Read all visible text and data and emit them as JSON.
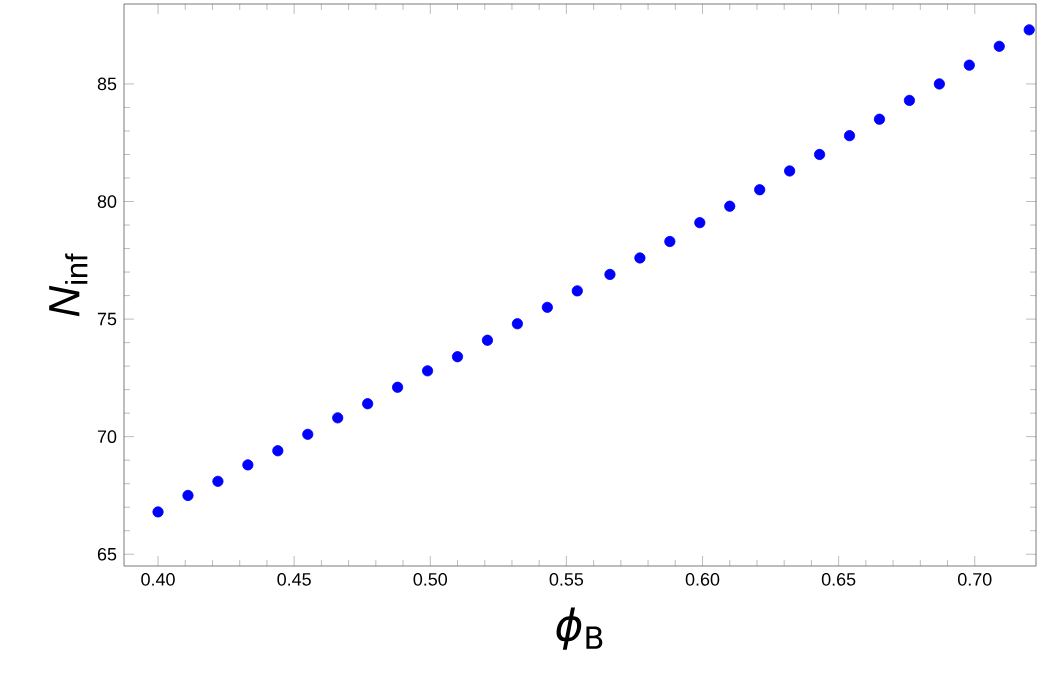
{
  "chart_data": {
    "type": "scatter",
    "xlabel": "*ϕ*$_{B}$",
    "ylabel": "*N*$_{inf}$",
    "x": [
      0.4,
      0.411,
      0.422,
      0.433,
      0.444,
      0.455,
      0.466,
      0.477,
      0.488,
      0.499,
      0.51,
      0.521,
      0.532,
      0.543,
      0.554,
      0.566,
      0.577,
      0.588,
      0.599,
      0.61,
      0.621,
      0.632,
      0.643,
      0.654,
      0.665,
      0.676,
      0.687,
      0.698,
      0.709,
      0.72
    ],
    "series": [
      {
        "color": "#0000ff",
        "values": [
          66.8,
          67.5,
          68.1,
          68.8,
          69.4,
          70.1,
          70.8,
          71.4,
          72.1,
          72.8,
          73.4,
          74.1,
          74.8,
          75.5,
          76.2,
          76.9,
          77.6,
          78.3,
          79.1,
          79.8,
          80.5,
          81.3,
          82.0,
          82.8,
          83.5,
          84.3,
          85.0,
          85.8,
          86.6,
          87.3
        ]
      }
    ],
    "xlim": [
      0.3875,
      0.7225
    ],
    "ylim": [
      64.5,
      88.4
    ],
    "xticks": [
      {
        "value": 0.4,
        "label": "0.40"
      },
      {
        "value": 0.45,
        "label": "0.45"
      },
      {
        "value": 0.5,
        "label": "0.50"
      },
      {
        "value": 0.55,
        "label": "0.55"
      },
      {
        "value": 0.6,
        "label": "0.60"
      },
      {
        "value": 0.65,
        "label": "0.65"
      },
      {
        "value": 0.7,
        "label": "0.70"
      }
    ],
    "yticks": [
      65,
      70,
      75,
      80,
      85
    ],
    "grid": false
  }
}
